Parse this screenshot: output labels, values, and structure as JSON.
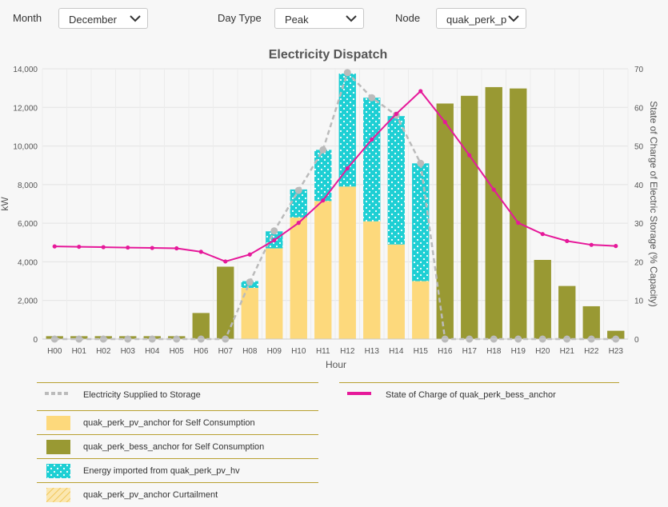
{
  "filters": {
    "month_label": "Month",
    "month_value": "December",
    "daytype_label": "Day Type",
    "daytype_value": "Peak",
    "node_label": "Node",
    "node_value": "quak_perk_p"
  },
  "colors": {
    "pv_self": "#fdd97c",
    "bess_self": "#999933",
    "imported": "#1dcfd4",
    "storage_line": "#bbbbbb",
    "soc_line": "#e6199a",
    "curtailment": "#f6d98a",
    "legend_rule": "#b8a030"
  },
  "chart_data": {
    "type": "bar",
    "title": "Electricity Dispatch",
    "xlabel": "Hour",
    "ylabel": "kW",
    "y2label": "State of Charge of Electric Storage (% Capacity)",
    "ylim": [
      0,
      14000
    ],
    "y2lim": [
      0,
      70
    ],
    "yticks": [
      "0",
      "2,000",
      "4,000",
      "6,000",
      "8,000",
      "10,000",
      "12,000",
      "14,000"
    ],
    "y2ticks": [
      "0",
      "10",
      "20",
      "30",
      "40",
      "50",
      "60",
      "70"
    ],
    "grid": true,
    "categories": [
      "H00",
      "H01",
      "H02",
      "H03",
      "H04",
      "H05",
      "H06",
      "H07",
      "H08",
      "H09",
      "H10",
      "H11",
      "H12",
      "H13",
      "H14",
      "H15",
      "H16",
      "H17",
      "H18",
      "H19",
      "H20",
      "H21",
      "H22",
      "H23"
    ],
    "series": [
      {
        "name": "quak_perk_pv_anchor for Self Consumption",
        "kind": "bar",
        "values": [
          0,
          0,
          0,
          0,
          0,
          0,
          0,
          0,
          2650,
          4700,
          6300,
          7150,
          7900,
          6100,
          4900,
          3000,
          0,
          0,
          0,
          0,
          0,
          0,
          0,
          0
        ]
      },
      {
        "name": "quak_perk_bess_anchor for Self Consumption",
        "kind": "bar",
        "values": [
          150,
          150,
          150,
          150,
          150,
          150,
          1350,
          3750,
          0,
          0,
          0,
          0,
          0,
          0,
          0,
          0,
          12200,
          12600,
          13050,
          12980,
          4100,
          2750,
          1700,
          430
        ]
      },
      {
        "name": "Energy imported from quak_perk_pv_hv",
        "kind": "bar",
        "values": [
          0,
          0,
          0,
          0,
          0,
          0,
          0,
          0,
          350,
          880,
          1450,
          2650,
          5850,
          6400,
          6650,
          6100,
          0,
          0,
          0,
          0,
          0,
          0,
          0,
          0
        ]
      },
      {
        "name": "quak_perk_pv_anchor Curtailment",
        "kind": "bar",
        "values": [
          0,
          0,
          0,
          0,
          0,
          0,
          0,
          0,
          0,
          0,
          0,
          0,
          0,
          0,
          0,
          0,
          0,
          0,
          0,
          0,
          0,
          0,
          0,
          0
        ]
      },
      {
        "name": "Electricity Supplied to Storage",
        "kind": "line",
        "axis": "left",
        "values": [
          0,
          0,
          0,
          0,
          0,
          0,
          0,
          0,
          2950,
          5600,
          7700,
          9800,
          13800,
          12500,
          11600,
          9100,
          0,
          0,
          0,
          0,
          0,
          0,
          0,
          0
        ]
      },
      {
        "name": "State of Charge of quak_perk_bess_anchor",
        "kind": "line",
        "axis": "right",
        "values": [
          24,
          23.9,
          23.8,
          23.7,
          23.6,
          23.5,
          22.6,
          20.1,
          21.9,
          25.6,
          30.1,
          35.9,
          44.2,
          51.7,
          58.3,
          64.2,
          56.2,
          47.6,
          38.7,
          30.1,
          27.2,
          25.4,
          24.4,
          24.1
        ]
      }
    ]
  },
  "legend": {
    "storage": "Electricity Supplied to Storage",
    "soc": "State of Charge of quak_perk_bess_anchor",
    "pv_self": "quak_perk_pv_anchor for Self Consumption",
    "bess_self": "quak_perk_bess_anchor for Self Consumption",
    "imported": "Energy imported from quak_perk_pv_hv",
    "curtailment": "quak_perk_pv_anchor Curtailment"
  }
}
